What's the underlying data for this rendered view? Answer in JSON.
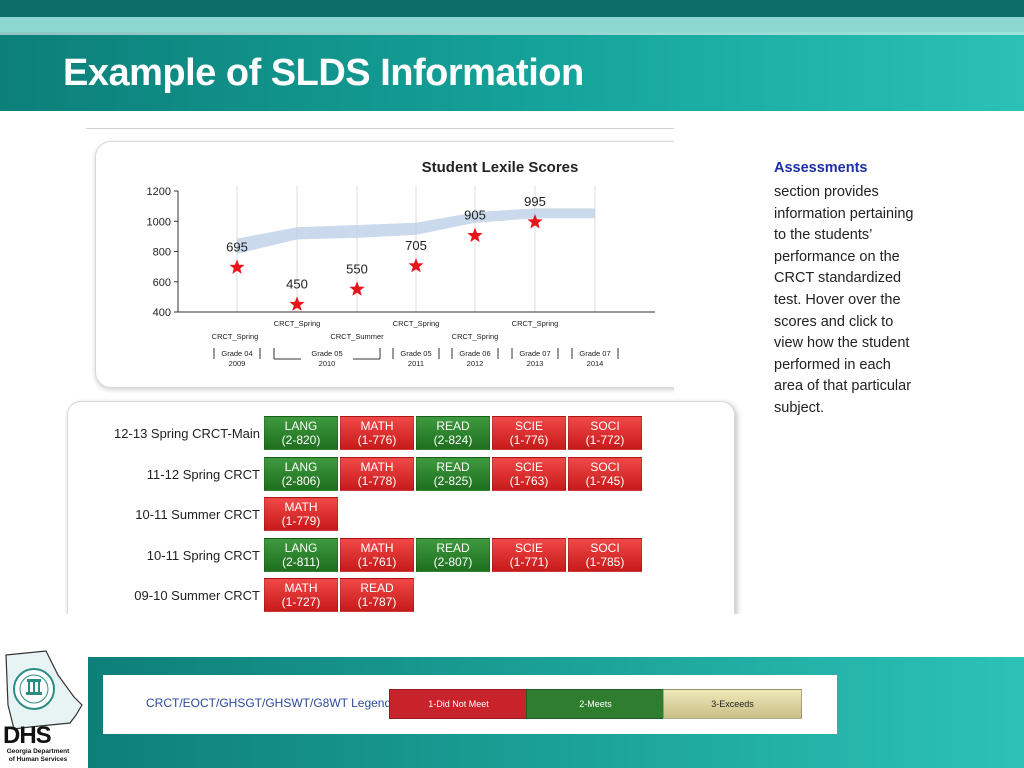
{
  "slide": {
    "title": "Example of SLDS Information"
  },
  "logo": {
    "abbr": "DHS",
    "org": "Georgia Department of Human Services"
  },
  "colors": {
    "teal_dark": "#0c7f79",
    "teal_light": "#2bc1b4",
    "does_not_meet": "#c8232b",
    "meets": "#2f7d2f",
    "exceeds": "#e9e1ad",
    "series_marker": "#e8141b",
    "band": "#b8cce4"
  },
  "chart_data": {
    "type": "scatter",
    "title": "Student Lexile Scores",
    "xlabel": "",
    "ylabel": "",
    "ylim": [
      400,
      1200
    ],
    "yticks": [
      400,
      600,
      800,
      1000,
      1200
    ],
    "grid": true,
    "points": [
      {
        "test": "CRCT_Spring",
        "grade": "Grade 04",
        "year": "2009",
        "value": 695
      },
      {
        "test": "CRCT_Spring",
        "grade": "Grade 05",
        "year": "2010",
        "value": 450
      },
      {
        "test": "CRCT_Summer",
        "grade": "Grade 05",
        "year": "2010",
        "value": 550
      },
      {
        "test": "CRCT_Spring",
        "grade": "Grade 05",
        "year": "2011",
        "value": 705
      },
      {
        "test": "CRCT_Spring",
        "grade": "Grade 06",
        "year": "2012",
        "value": 905
      },
      {
        "test": "CRCT_Spring",
        "grade": "Grade 07",
        "year": "2013",
        "value": 995
      }
    ],
    "band": {
      "lower": [
        785,
        880,
        890,
        910,
        990,
        1020,
        1020
      ],
      "upper": [
        885,
        960,
        975,
        990,
        1060,
        1085,
        1085
      ]
    },
    "grade_groups": [
      {
        "grade": "Grade 04",
        "year": "2009"
      },
      {
        "grade": "Grade 05",
        "year": "2010"
      },
      {
        "grade": "Grade 05",
        "year": "2011"
      },
      {
        "grade": "Grade 06",
        "year": "2012"
      },
      {
        "grade": "Grade 07",
        "year": "2013"
      },
      {
        "grade": "Grade 07",
        "year": "2014"
      }
    ]
  },
  "assessments": [
    {
      "label": "12-13 Spring CRCT-Main",
      "cells": [
        {
          "subject": "LANG",
          "score": "(2-820)",
          "level": "g"
        },
        {
          "subject": "MATH",
          "score": "(1-776)",
          "level": "r"
        },
        {
          "subject": "READ",
          "score": "(2-824)",
          "level": "g"
        },
        {
          "subject": "SCIE",
          "score": "(1-776)",
          "level": "r"
        },
        {
          "subject": "SOCI",
          "score": "(1-772)",
          "level": "r"
        }
      ]
    },
    {
      "label": "11-12 Spring CRCT",
      "cells": [
        {
          "subject": "LANG",
          "score": "(2-806)",
          "level": "g"
        },
        {
          "subject": "MATH",
          "score": "(1-778)",
          "level": "r"
        },
        {
          "subject": "READ",
          "score": "(2-825)",
          "level": "g"
        },
        {
          "subject": "SCIE",
          "score": "(1-763)",
          "level": "r"
        },
        {
          "subject": "SOCI",
          "score": "(1-745)",
          "level": "r"
        }
      ]
    },
    {
      "label": "10-11 Summer CRCT",
      "cells": [
        {
          "subject": "MATH",
          "score": "(1-779)",
          "level": "r"
        }
      ]
    },
    {
      "label": "10-11 Spring CRCT",
      "cells": [
        {
          "subject": "LANG",
          "score": "(2-811)",
          "level": "g"
        },
        {
          "subject": "MATH",
          "score": "(1-761)",
          "level": "r"
        },
        {
          "subject": "READ",
          "score": "(2-807)",
          "level": "g"
        },
        {
          "subject": "SCIE",
          "score": "(1-771)",
          "level": "r"
        },
        {
          "subject": "SOCI",
          "score": "(1-785)",
          "level": "r"
        }
      ]
    },
    {
      "label": "09-10 Summer CRCT",
      "cells": [
        {
          "subject": "MATH",
          "score": "(1-727)",
          "level": "r"
        },
        {
          "subject": "READ",
          "score": "(1-787)",
          "level": "r"
        }
      ]
    }
  ],
  "sidebar": {
    "heading": "Assessments",
    "body": "section provides information pertaining to the students’ performance on the CRCT standardized test. Hover over the scores and click to view how the student performed in each area of that particular subject."
  },
  "legend": {
    "label": "CRCT/EOCT/GHSGT/GHSWT/G8WT Legend",
    "items": [
      "1-Did Not Meet",
      "2-Meets",
      "3-Exceeds"
    ]
  }
}
